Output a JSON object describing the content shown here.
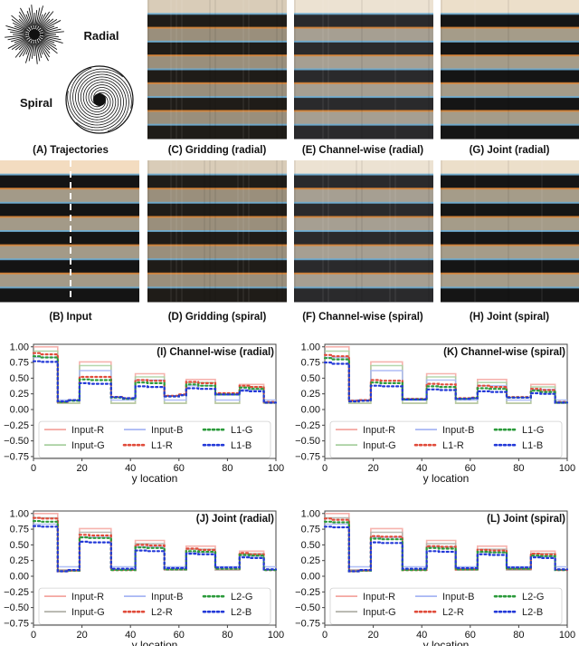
{
  "trajectories": {
    "radial_label": "Radial",
    "spiral_label": "Spiral"
  },
  "panels": [
    {
      "id": "A",
      "caption": "(A) Trajectories"
    },
    {
      "id": "C",
      "caption": "(C) Gridding (radial)",
      "tone": "warm",
      "blur": 0.25
    },
    {
      "id": "E",
      "caption": "(E) Channel-wise (radial)",
      "tone": "washed",
      "blur": 0.15
    },
    {
      "id": "G",
      "caption": "(G) Joint (radial)",
      "tone": "clean",
      "blur": 0.08
    },
    {
      "id": "B",
      "caption": "(B) Input",
      "tone": "input",
      "blur": 0
    },
    {
      "id": "D",
      "caption": "(D) Gridding (spiral)",
      "tone": "warm",
      "blur": 0.3
    },
    {
      "id": "F",
      "caption": "(F) Channel-wise (spiral)",
      "tone": "washed",
      "blur": 0.2
    },
    {
      "id": "H",
      "caption": "(H) Joint (spiral)",
      "tone": "clean",
      "blur": 0.1
    }
  ],
  "colors": {
    "R": "#e8736b",
    "G": "#5aa85a",
    "B": "#4b63e0",
    "accent_orange": "#e08a3a",
    "sky": "#f6e2c8"
  },
  "chart_data": [
    {
      "type": "line",
      "title": "(I) Channel-wise (radial)",
      "xlabel": "y location",
      "xlim": [
        0,
        100
      ],
      "ylim": [
        -0.75,
        1.0
      ],
      "xticks": [
        "0",
        "20",
        "40",
        "60",
        "80",
        "100"
      ],
      "yticks": [
        "1.00",
        "0.75",
        "0.50",
        "0.25",
        "0.00",
        "−0.25",
        "−0.50",
        "−0.75"
      ],
      "legend": "lower-center",
      "x": [
        0,
        3,
        10,
        14,
        19,
        23,
        32,
        37,
        42,
        47,
        54,
        60,
        63,
        68,
        75,
        80,
        85,
        89,
        95,
        100
      ],
      "series": [
        {
          "name": "Input-R",
          "style": "solid",
          "color": "#f4a6a0",
          "values": [
            1.0,
            1.0,
            0.1,
            0.1,
            0.76,
            0.76,
            0.1,
            0.1,
            0.57,
            0.57,
            0.1,
            0.1,
            0.48,
            0.48,
            0.1,
            0.1,
            0.4,
            0.4,
            0.1,
            0.1
          ]
        },
        {
          "name": "Input-G",
          "style": "solid",
          "color": "#a8d0a0",
          "values": [
            0.93,
            0.93,
            0.1,
            0.1,
            0.7,
            0.7,
            0.1,
            0.1,
            0.52,
            0.52,
            0.1,
            0.1,
            0.43,
            0.43,
            0.1,
            0.1,
            0.36,
            0.36,
            0.1,
            0.1
          ]
        },
        {
          "name": "Input-B",
          "style": "solid",
          "color": "#a7b6f4",
          "values": [
            0.83,
            0.83,
            0.15,
            0.15,
            0.62,
            0.62,
            0.15,
            0.15,
            0.47,
            0.47,
            0.15,
            0.15,
            0.38,
            0.38,
            0.15,
            0.15,
            0.32,
            0.32,
            0.15,
            0.15
          ]
        },
        {
          "name": "L1-R",
          "style": "dotted",
          "color": "#e04b3a",
          "values": [
            0.9,
            0.88,
            0.12,
            0.15,
            0.52,
            0.52,
            0.2,
            0.18,
            0.47,
            0.46,
            0.22,
            0.24,
            0.44,
            0.42,
            0.26,
            0.26,
            0.38,
            0.36,
            0.12,
            0.12
          ]
        },
        {
          "name": "L1-G",
          "style": "dotted",
          "color": "#2a9a3a",
          "values": [
            0.85,
            0.83,
            0.12,
            0.14,
            0.48,
            0.47,
            0.19,
            0.17,
            0.43,
            0.42,
            0.21,
            0.23,
            0.4,
            0.38,
            0.24,
            0.24,
            0.35,
            0.33,
            0.11,
            0.11
          ]
        },
        {
          "name": "L1-B",
          "style": "dotted",
          "color": "#2238d8",
          "values": [
            0.77,
            0.76,
            0.13,
            0.15,
            0.42,
            0.41,
            0.2,
            0.18,
            0.37,
            0.36,
            0.21,
            0.23,
            0.34,
            0.33,
            0.24,
            0.24,
            0.3,
            0.29,
            0.11,
            0.11
          ]
        }
      ]
    },
    {
      "type": "line",
      "title": "(K) Channel-wise (spiral)",
      "xlabel": "y location",
      "xlim": [
        0,
        100
      ],
      "ylim": [
        -0.75,
        1.0
      ],
      "xticks": [
        "0",
        "20",
        "40",
        "60",
        "80",
        "100"
      ],
      "yticks": [
        "1.00",
        "0.75",
        "0.50",
        "0.25",
        "0.00",
        "−0.25",
        "−0.50",
        "−0.75"
      ],
      "legend": "lower-center",
      "x": [
        0,
        3,
        10,
        14,
        19,
        23,
        32,
        37,
        42,
        47,
        54,
        60,
        63,
        68,
        75,
        80,
        85,
        89,
        95,
        100
      ],
      "series": [
        {
          "name": "Input-R",
          "style": "solid",
          "color": "#f4a6a0",
          "values": [
            1.0,
            1.0,
            0.1,
            0.1,
            0.76,
            0.76,
            0.1,
            0.1,
            0.57,
            0.57,
            0.1,
            0.1,
            0.48,
            0.48,
            0.1,
            0.1,
            0.4,
            0.4,
            0.1,
            0.1
          ]
        },
        {
          "name": "Input-G",
          "style": "solid",
          "color": "#a8d0a0",
          "values": [
            0.93,
            0.93,
            0.1,
            0.1,
            0.7,
            0.7,
            0.1,
            0.1,
            0.52,
            0.52,
            0.1,
            0.1,
            0.43,
            0.43,
            0.1,
            0.1,
            0.36,
            0.36,
            0.1,
            0.1
          ]
        },
        {
          "name": "Input-B",
          "style": "solid",
          "color": "#a7b6f4",
          "values": [
            0.83,
            0.83,
            0.15,
            0.15,
            0.62,
            0.62,
            0.15,
            0.15,
            0.47,
            0.47,
            0.15,
            0.15,
            0.38,
            0.38,
            0.15,
            0.15,
            0.32,
            0.32,
            0.15,
            0.15
          ]
        },
        {
          "name": "L1-R",
          "style": "dotted",
          "color": "#e04b3a",
          "values": [
            0.87,
            0.85,
            0.14,
            0.15,
            0.47,
            0.46,
            0.17,
            0.17,
            0.41,
            0.4,
            0.18,
            0.19,
            0.38,
            0.36,
            0.2,
            0.2,
            0.33,
            0.31,
            0.12,
            0.12
          ]
        },
        {
          "name": "L1-G",
          "style": "dotted",
          "color": "#2a9a3a",
          "values": [
            0.82,
            0.8,
            0.13,
            0.14,
            0.43,
            0.42,
            0.16,
            0.16,
            0.37,
            0.36,
            0.17,
            0.18,
            0.34,
            0.33,
            0.19,
            0.19,
            0.3,
            0.28,
            0.11,
            0.11
          ]
        },
        {
          "name": "L1-B",
          "style": "dotted",
          "color": "#2238d8",
          "values": [
            0.75,
            0.73,
            0.13,
            0.14,
            0.38,
            0.37,
            0.16,
            0.16,
            0.32,
            0.31,
            0.17,
            0.18,
            0.29,
            0.28,
            0.19,
            0.19,
            0.26,
            0.25,
            0.11,
            0.11
          ]
        }
      ]
    },
    {
      "type": "line",
      "title": "(J) Joint (radial)",
      "xlabel": "y location",
      "xlim": [
        0,
        100
      ],
      "ylim": [
        -0.75,
        1.0
      ],
      "xticks": [
        "0",
        "20",
        "40",
        "60",
        "80",
        "100"
      ],
      "yticks": [
        "1.00",
        "0.75",
        "0.50",
        "0.25",
        "0.00",
        "−0.25",
        "−0.50",
        "−0.75"
      ],
      "legend": "lower-center",
      "x": [
        0,
        3,
        10,
        14,
        19,
        23,
        32,
        37,
        42,
        47,
        54,
        60,
        63,
        68,
        75,
        80,
        85,
        89,
        95,
        100
      ],
      "series": [
        {
          "name": "Input-R",
          "style": "solid",
          "color": "#f4a6a0",
          "values": [
            1.0,
            1.0,
            0.1,
            0.1,
            0.76,
            0.76,
            0.1,
            0.1,
            0.57,
            0.57,
            0.1,
            0.1,
            0.48,
            0.48,
            0.1,
            0.1,
            0.4,
            0.4,
            0.1,
            0.1
          ]
        },
        {
          "name": "Input-G",
          "style": "solid",
          "color": "#b0b0a8",
          "values": [
            0.93,
            0.93,
            0.1,
            0.1,
            0.7,
            0.7,
            0.1,
            0.1,
            0.52,
            0.52,
            0.1,
            0.1,
            0.43,
            0.43,
            0.1,
            0.1,
            0.36,
            0.36,
            0.1,
            0.1
          ]
        },
        {
          "name": "Input-B",
          "style": "solid",
          "color": "#a7b6f4",
          "values": [
            0.83,
            0.83,
            0.15,
            0.15,
            0.62,
            0.62,
            0.15,
            0.15,
            0.47,
            0.47,
            0.15,
            0.15,
            0.38,
            0.38,
            0.15,
            0.15,
            0.32,
            0.32,
            0.15,
            0.15
          ]
        },
        {
          "name": "L2-R",
          "style": "dotted",
          "color": "#e04b3a",
          "values": [
            0.93,
            0.92,
            0.08,
            0.09,
            0.66,
            0.65,
            0.1,
            0.1,
            0.5,
            0.49,
            0.11,
            0.11,
            0.44,
            0.42,
            0.12,
            0.12,
            0.37,
            0.35,
            0.1,
            0.1
          ]
        },
        {
          "name": "L2-G",
          "style": "dotted",
          "color": "#2a9a3a",
          "values": [
            0.88,
            0.87,
            0.08,
            0.09,
            0.62,
            0.61,
            0.1,
            0.1,
            0.46,
            0.45,
            0.11,
            0.11,
            0.4,
            0.39,
            0.12,
            0.12,
            0.34,
            0.33,
            0.1,
            0.1
          ]
        },
        {
          "name": "L2-B",
          "style": "dotted",
          "color": "#2238d8",
          "values": [
            0.8,
            0.79,
            0.08,
            0.1,
            0.55,
            0.54,
            0.12,
            0.12,
            0.41,
            0.4,
            0.13,
            0.13,
            0.36,
            0.35,
            0.14,
            0.14,
            0.3,
            0.29,
            0.11,
            0.11
          ]
        }
      ]
    },
    {
      "type": "line",
      "title": "(L) Joint (spiral)",
      "xlabel": "y location",
      "xlim": [
        0,
        100
      ],
      "ylim": [
        -0.75,
        1.0
      ],
      "xticks": [
        "0",
        "20",
        "40",
        "60",
        "80",
        "100"
      ],
      "yticks": [
        "1.00",
        "0.75",
        "0.50",
        "0.25",
        "0.00",
        "−0.25",
        "−0.50",
        "−0.75"
      ],
      "legend": "lower-center",
      "x": [
        0,
        3,
        10,
        14,
        19,
        23,
        32,
        37,
        42,
        47,
        54,
        60,
        63,
        68,
        75,
        80,
        85,
        89,
        95,
        100
      ],
      "series": [
        {
          "name": "Input-R",
          "style": "solid",
          "color": "#f4a6a0",
          "values": [
            1.0,
            1.0,
            0.1,
            0.1,
            0.76,
            0.76,
            0.1,
            0.1,
            0.57,
            0.57,
            0.1,
            0.1,
            0.48,
            0.48,
            0.1,
            0.1,
            0.4,
            0.4,
            0.1,
            0.1
          ]
        },
        {
          "name": "Input-G",
          "style": "solid",
          "color": "#b0b0a8",
          "values": [
            0.93,
            0.93,
            0.1,
            0.1,
            0.7,
            0.7,
            0.1,
            0.1,
            0.52,
            0.52,
            0.1,
            0.1,
            0.43,
            0.43,
            0.1,
            0.1,
            0.36,
            0.36,
            0.1,
            0.1
          ]
        },
        {
          "name": "Input-B",
          "style": "solid",
          "color": "#a7b6f4",
          "values": [
            0.83,
            0.83,
            0.15,
            0.15,
            0.62,
            0.62,
            0.15,
            0.15,
            0.47,
            0.47,
            0.15,
            0.15,
            0.38,
            0.38,
            0.15,
            0.15,
            0.32,
            0.32,
            0.15,
            0.15
          ]
        },
        {
          "name": "L2-R",
          "style": "dotted",
          "color": "#e04b3a",
          "values": [
            0.92,
            0.9,
            0.08,
            0.09,
            0.64,
            0.63,
            0.1,
            0.1,
            0.48,
            0.47,
            0.11,
            0.11,
            0.42,
            0.41,
            0.12,
            0.12,
            0.36,
            0.35,
            0.1,
            0.1
          ]
        },
        {
          "name": "L2-G",
          "style": "dotted",
          "color": "#2a9a3a",
          "values": [
            0.87,
            0.86,
            0.08,
            0.09,
            0.6,
            0.59,
            0.1,
            0.1,
            0.45,
            0.44,
            0.11,
            0.11,
            0.39,
            0.38,
            0.12,
            0.12,
            0.33,
            0.32,
            0.1,
            0.1
          ]
        },
        {
          "name": "L2-B",
          "style": "dotted",
          "color": "#2238d8",
          "values": [
            0.79,
            0.78,
            0.08,
            0.1,
            0.54,
            0.53,
            0.12,
            0.12,
            0.4,
            0.39,
            0.13,
            0.13,
            0.35,
            0.34,
            0.14,
            0.14,
            0.3,
            0.29,
            0.11,
            0.11
          ]
        }
      ]
    }
  ]
}
